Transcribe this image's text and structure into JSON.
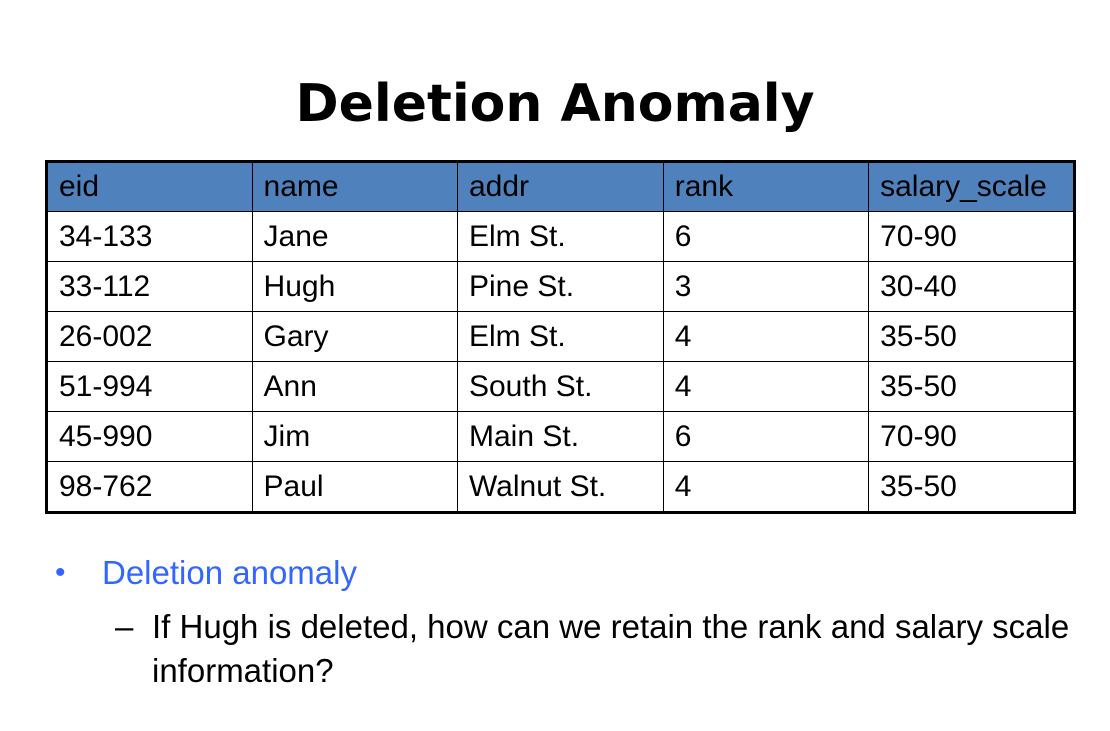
{
  "slide": {
    "title": "Deletion Anomaly"
  },
  "table": {
    "headers": [
      "eid",
      "name",
      "addr",
      "rank",
      "salary_scale"
    ],
    "rows": [
      [
        "34-133",
        "Jane",
        "Elm St.",
        "6",
        "70-90"
      ],
      [
        "33-112",
        "Hugh",
        "Pine St.",
        "3",
        "30-40"
      ],
      [
        "26-002",
        "Gary",
        "Elm St.",
        "4",
        "35-50"
      ],
      [
        "51-994",
        "Ann",
        "South St.",
        "4",
        "35-50"
      ],
      [
        "45-990",
        "Jim",
        "Main St.",
        "6",
        "70-90"
      ],
      [
        "98-762",
        "Paul",
        "Walnut St.",
        "4",
        "35-50"
      ]
    ]
  },
  "bullets": {
    "level1": {
      "marker": "•",
      "text": "Deletion anomaly"
    },
    "level2": {
      "marker": "–",
      "text": "If Hugh is deleted, how can we retain the rank and salary scale information?"
    }
  },
  "colors": {
    "header_fill": "#4f81bd",
    "bullet_accent": "#3366ff",
    "text": "#000000",
    "background": "#ffffff"
  }
}
